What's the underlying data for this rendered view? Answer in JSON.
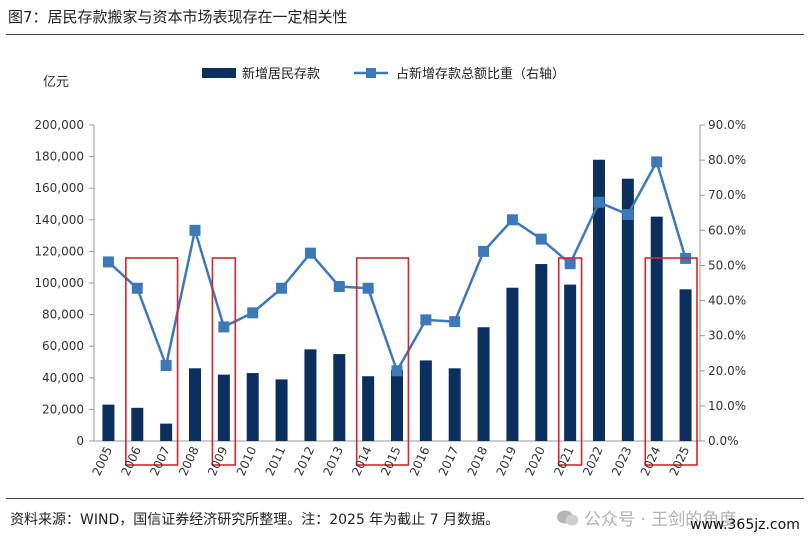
{
  "figure": {
    "title": "图7：居民存款搬家与资本市场表现存在一定相关性",
    "source": "资料来源：WIND，国信证券经济研究所整理。注：2025 年为截止 7 月数据。",
    "watermark": "公众号 · 王剑的角度",
    "watermark_url": "www.365jz.com"
  },
  "chart_data": {
    "type": "bar",
    "title": "",
    "left_unit": "亿元",
    "categories": [
      "2005",
      "2006",
      "2007",
      "2008",
      "2009",
      "2010",
      "2011",
      "2012",
      "2013",
      "2014",
      "2015",
      "2016",
      "2017",
      "2018",
      "2019",
      "2020",
      "2021",
      "2022",
      "2023",
      "2024",
      "2025"
    ],
    "series": [
      {
        "name": "新增居民存款",
        "type": "bar",
        "axis": "left",
        "color": "#0b2f5e",
        "values": [
          23000,
          21000,
          11000,
          46000,
          42000,
          43000,
          39000,
          58000,
          55000,
          41000,
          45000,
          51000,
          46000,
          72000,
          97000,
          112000,
          99000,
          178000,
          166000,
          142000,
          96000
        ]
      },
      {
        "name": "占新增存款总额比重（右轴）",
        "type": "line",
        "axis": "right",
        "color": "#3d78b8",
        "values": [
          0.51,
          0.435,
          0.215,
          0.6,
          0.325,
          0.365,
          0.435,
          0.535,
          0.44,
          0.435,
          0.2,
          0.345,
          0.34,
          0.54,
          0.63,
          0.575,
          0.505,
          0.68,
          0.645,
          0.795,
          0.52
        ]
      }
    ],
    "y_left": {
      "range": [
        0,
        200000
      ],
      "ticks": [
        "0",
        "20,000",
        "40,000",
        "60,000",
        "80,000",
        "100,000",
        "120,000",
        "140,000",
        "160,000",
        "180,000",
        "200,000"
      ]
    },
    "y_right": {
      "range": [
        0,
        0.9
      ],
      "ticks": [
        "0.0%",
        "10.0%",
        "20.0%",
        "30.0%",
        "40.0%",
        "50.0%",
        "60.0%",
        "70.0%",
        "80.0%",
        "90.0%"
      ]
    },
    "highlight_color": "#d9232e",
    "highlights": [
      {
        "from": "2006",
        "to": "2007"
      },
      {
        "from": "2009",
        "to": "2009"
      },
      {
        "from": "2014",
        "to": "2015"
      },
      {
        "from": "2021",
        "to": "2021"
      },
      {
        "from": "2024",
        "to": "2025"
      }
    ],
    "legend_position": "top",
    "grid": false
  }
}
